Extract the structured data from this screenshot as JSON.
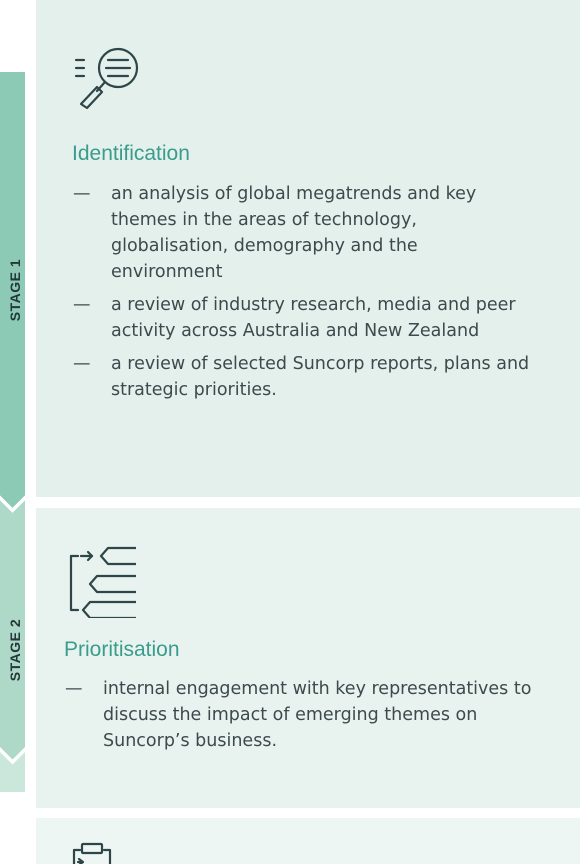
{
  "stages": [
    {
      "label": "STAGE 1",
      "icon": "magnifier-list-icon",
      "heading": "Identification",
      "items": [
        "an analysis of global megatrends and key themes in the areas of technology, globalisation, demography and the environment",
        "a review of industry research, media and peer activity across Australia and New Zealand",
        "a review of selected Suncorp reports, plans and strategic priorities."
      ]
    },
    {
      "label": "STAGE 2",
      "icon": "priority-tags-icon",
      "heading": "Prioritisation",
      "items": [
        "internal engagement with key representatives to discuss the impact of emerging themes on Suncorp’s business."
      ]
    },
    {
      "icon": "clipboard-icon"
    }
  ],
  "dash": "—",
  "colors": {
    "band_stage1": "#8ccab5",
    "band_stage2": "#aed9c8",
    "band_stage3": "#cbe7dc",
    "panel_stage1": "#e4f0ec",
    "panel_stage2": "#e8f3ef",
    "panel_stage3": "#eef6f3",
    "heading": "#3a9c8c",
    "body_text": "#3c4a4c",
    "stage_label": "#24373a"
  }
}
